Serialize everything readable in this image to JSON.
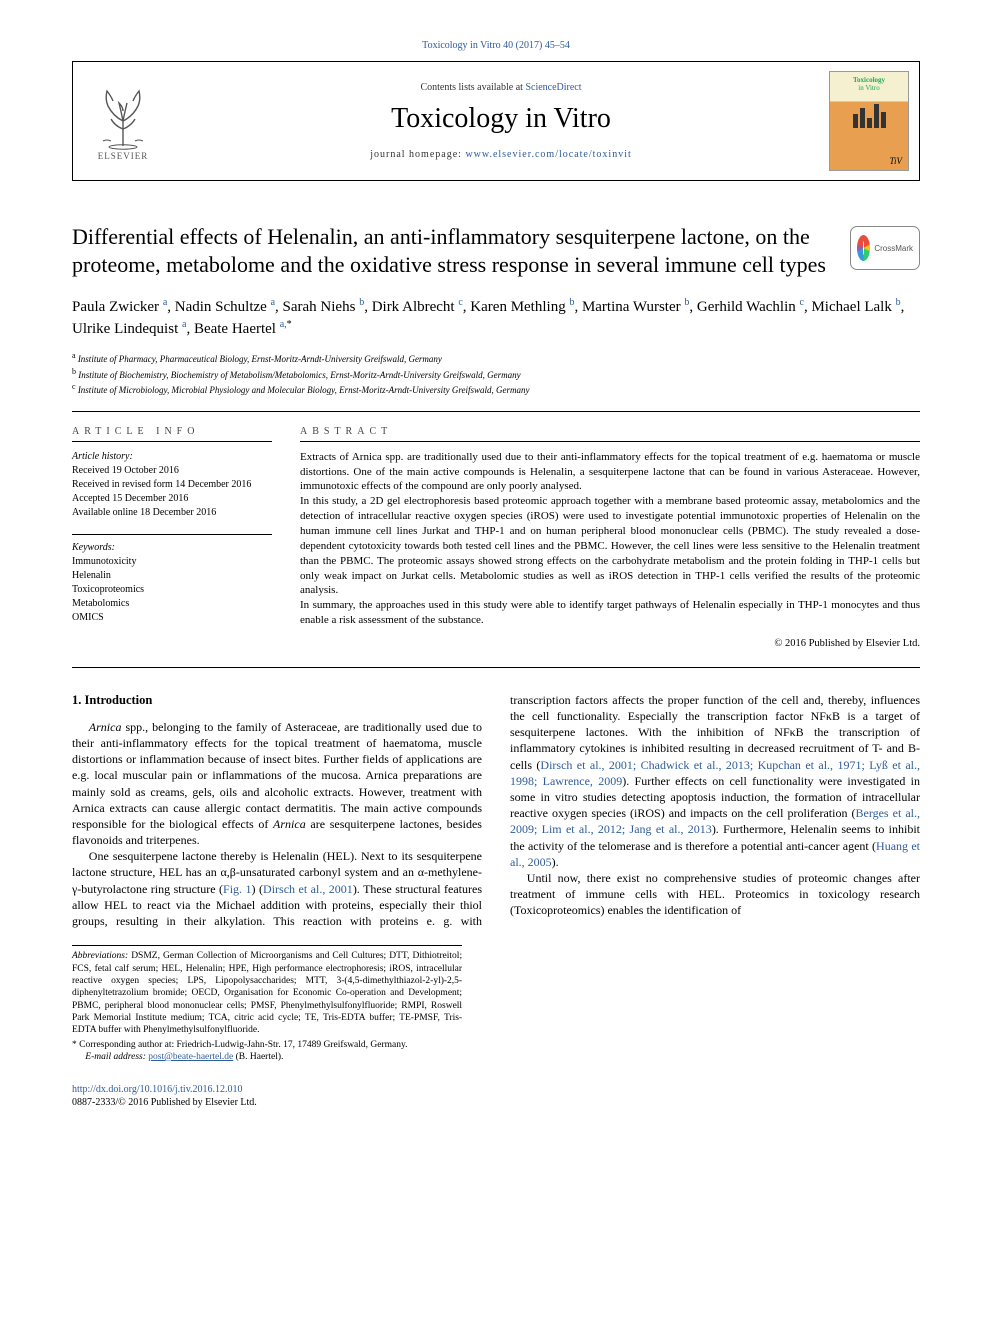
{
  "colors": {
    "link": "#2e5c9a",
    "text": "#000000",
    "bg": "#ffffff",
    "rule": "#000000"
  },
  "top_link": "Toxicology in Vitro 40 (2017) 45–54",
  "header": {
    "contents_prefix": "Contents lists available at ",
    "contents_link": "ScienceDirect",
    "journal": "Toxicology in Vitro",
    "homepage_prefix": "journal homepage: ",
    "homepage_url": "www.elsevier.com/locate/toxinvit",
    "publisher": "ELSEVIER",
    "cover_title": "Toxicology",
    "cover_sub": "in Vitro",
    "cover_tiv": "TiV"
  },
  "crossmark": "CrossMark",
  "title": "Differential effects of Helenalin, an anti-inflammatory sesquiterpene lactone, on the proteome, metabolome and the oxidative stress response in several immune cell types",
  "authors": [
    {
      "name": "Paula Zwicker",
      "aff": "a"
    },
    {
      "name": "Nadin Schultze",
      "aff": "a"
    },
    {
      "name": "Sarah Niehs",
      "aff": "b"
    },
    {
      "name": "Dirk Albrecht",
      "aff": "c"
    },
    {
      "name": "Karen Methling",
      "aff": "b"
    },
    {
      "name": "Martina Wurster",
      "aff": "b"
    },
    {
      "name": "Gerhild Wachlin",
      "aff": "c"
    },
    {
      "name": "Michael Lalk",
      "aff": "b"
    },
    {
      "name": "Ulrike Lindequist",
      "aff": "a"
    },
    {
      "name": "Beate Haertel",
      "aff": "a,",
      "star": "*"
    }
  ],
  "affiliations": [
    {
      "key": "a",
      "text": "Institute of Pharmacy, Pharmaceutical Biology, Ernst-Moritz-Arndt-University Greifswald, Germany"
    },
    {
      "key": "b",
      "text": "Institute of Biochemistry, Biochemistry of Metabolism/Metabolomics, Ernst-Moritz-Arndt-University Greifswald, Germany"
    },
    {
      "key": "c",
      "text": "Institute of Microbiology, Microbial Physiology and Molecular Biology, Ernst-Moritz-Arndt-University Greifswald, Germany"
    }
  ],
  "info": {
    "head": "ARTICLE INFO",
    "history_label": "Article history:",
    "history": [
      "Received 19 October 2016",
      "Received in revised form 14 December 2016",
      "Accepted 15 December 2016",
      "Available online 18 December 2016"
    ],
    "keywords_label": "Keywords:",
    "keywords": [
      "Immunotoxicity",
      "Helenalin",
      "Toxicoproteomics",
      "Metabolomics",
      "OMICS"
    ]
  },
  "abstract": {
    "head": "ABSTRACT",
    "paras": [
      "Extracts of Arnica spp. are traditionally used due to their anti-inflammatory effects for the topical treatment of e.g. haematoma or muscle distortions. One of the main active compounds is Helenalin, a sesquiterpene lactone that can be found in various Asteraceae. However, immunotoxic effects of the compound are only poorly analysed.",
      "In this study, a 2D gel electrophoresis based proteomic approach together with a membrane based proteomic assay, metabolomics and the detection of intracellular reactive oxygen species (iROS) were used to investigate potential immunotoxic properties of Helenalin on the human immune cell lines Jurkat and THP-1 and on human peripheral blood mononuclear cells (PBMC). The study revealed a dose-dependent cytotoxicity towards both tested cell lines and the PBMC. However, the cell lines were less sensitive to the Helenalin treatment than the PBMC. The proteomic assays showed strong effects on the carbohydrate metabolism and the protein folding in THP-1 cells but only weak impact on Jurkat cells. Metabolomic studies as well as iROS detection in THP-1 cells verified the results of the proteomic analysis.",
      "In summary, the approaches used in this study were able to identify target pathways of Helenalin especially in THP-1 monocytes and thus enable a risk assessment of the substance."
    ],
    "copyright": "© 2016 Published by Elsevier Ltd."
  },
  "intro": {
    "heading": "1. Introduction",
    "p1_html": "<em>Arnica</em> spp., belonging to the family of Asteraceae, are traditionally used due to their anti-inflammatory effects for the topical treatment of haematoma, muscle distortions or inflammation because of insect bites. Further fields of applications are e.g. local muscular pain or inflammations of the mucosa. Arnica preparations are mainly sold as creams, gels, oils and alcoholic extracts. However, treatment with Arnica extracts can cause allergic contact dermatitis. The main active compounds responsible for the biological effects of <em>Arnica</em> are sesquiterpene lactones, besides flavonoids and triterpenes.",
    "p2_html": "One sesquiterpene lactone thereby is Helenalin (HEL). Next to its sesquiterpene lactone structure, HEL has an α,β-unsaturated carbonyl system and an α-methylene-γ-butyrolactone ring structure (<span class=\"cite\">Fig. 1</span>) (<span class=\"cite\">Dirsch et al., 2001</span>). These structural features allow HEL to react via the Michael addition with proteins, especially their thiol groups, resulting in their alkylation. This reaction with proteins e. g. with transcription factors affects the proper function of the cell and, thereby, influences the cell functionality. Especially the transcription factor NFκB is a target of sesquiterpene lactones. With the inhibition of NFκB the transcription of inflammatory cytokines is inhibited resulting in decreased recruitment of T- and B-cells (<span class=\"cite\">Dirsch et al., 2001; Chadwick et al., 2013; Kupchan et al., 1971; Lyß et al., 1998; Lawrence, 2009</span>). Further effects on cell functionality were investigated in some in vitro studies detecting apoptosis induction, the formation of intracellular reactive oxygen species (iROS) and impacts on the cell proliferation (<span class=\"cite\">Berges et al., 2009; Lim et al., 2012; Jang et al., 2013</span>). Furthermore, Helenalin seems to inhibit the activity of the telomerase and is therefore a potential anti-cancer agent (<span class=\"cite\">Huang et al., 2005</span>).",
    "p3_html": "Until now, there exist no comprehensive studies of proteomic changes after treatment of immune cells with HEL. Proteomics in toxicology research (Toxicoproteomics) enables the identification of"
  },
  "footnotes": {
    "abbrev_label": "Abbreviations:",
    "abbrev": " DSMZ, German Collection of Microorganisms and Cell Cultures; DTT, Dithiotreitol; FCS, fetal calf serum; HEL, Helenalin; HPE, High performance electrophoresis; iROS, intracellular reactive oxygen species; LPS, Lipopolysaccharides; MTT, 3-(4,5-dimethylthiazol-2-yl)-2,5-diphenyltetrazolium bromide; OECD, Organisation for Economic Co-operation and Development; PBMC, peripheral blood mononuclear cells; PMSF, Phenylmethylsulfonylfluoride; RMPI, Roswell Park Memorial Institute medium; TCA, citric acid cycle; TE, Tris-EDTA buffer; TE-PMSF, Tris-EDTA buffer with Phenylmethylsulfonylfluoride.",
    "corr_prefix": "* Corresponding author at: Friedrich-Ludwig-Jahn-Str. 17, 17489 Greifswald, Germany.",
    "email_label": "E-mail address:",
    "email": "post@beate-haertel.de",
    "email_suffix": " (B. Haertel)."
  },
  "bottom": {
    "doi": "http://dx.doi.org/10.1016/j.tiv.2016.12.010",
    "issn_line": "0887-2333/© 2016 Published by Elsevier Ltd."
  }
}
